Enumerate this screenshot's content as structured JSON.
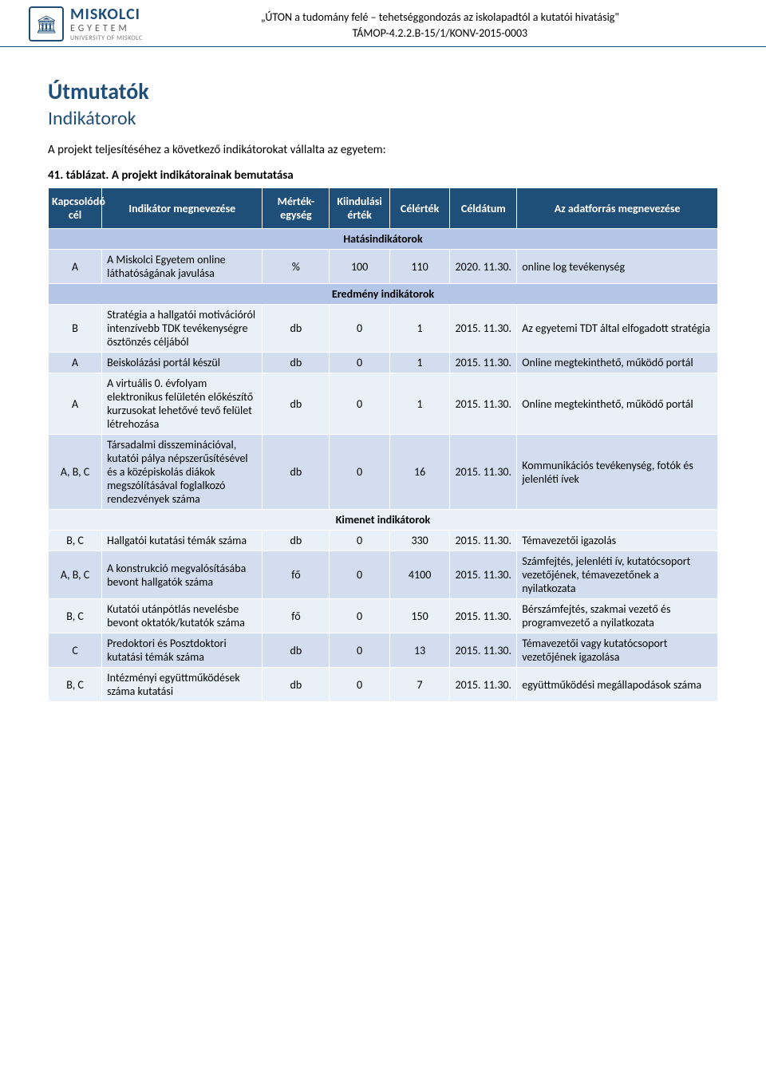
{
  "header": {
    "logo_big": "MISKOLCI",
    "logo_mid": "EGYETEM",
    "logo_small": "UNIVERSITY OF MISKOLC",
    "title_line1": "„ÚTON a tudomány felé – tehetséggondozás az iskolapadtól a kutatói hivatásig\"",
    "title_line2": "TÁMOP-4.2.2.B-15/1/KONV-2015-0003"
  },
  "headings": {
    "h1": "Útmutatók",
    "h2": "Indikátorok"
  },
  "intro": "A projekt teljesítéséhez a következő indikátorokat vállalta az egyetem:",
  "caption": "41. táblázat. A projekt indikátorainak bemutatása",
  "table": {
    "columns": [
      "Kapcsolódó cél",
      "Indikátor megnevezése",
      "Mérték-egység",
      "Kiindulási érték",
      "Célérték",
      "Céldátum",
      "Az adatforrás megnevezése"
    ],
    "sections": [
      {
        "title": "Hatásindikátorok",
        "rows": [
          {
            "c": [
              "A",
              "A Miskolci Egyetem online láthatóságának javulása",
              "%",
              "100",
              "110",
              "2020. 11.30.",
              "online log tevékenység"
            ]
          }
        ]
      },
      {
        "title": "Eredmény indikátorok",
        "rows": [
          {
            "c": [
              "B",
              "Stratégia a hallgatói motivációról intenzívebb TDK tevékenységre ösztönzés céljából",
              "db",
              "0",
              "1",
              "2015. 11.30.",
              "Az egyetemi TDT által elfogadott stratégia"
            ]
          },
          {
            "c": [
              "A",
              "Beiskolázási portál készül",
              "db",
              "0",
              "1",
              "2015. 11.30.",
              "Online megtekinthető, működő portál"
            ]
          },
          {
            "c": [
              "A",
              "A virtuális 0. évfolyam elektronikus felületén előkészítő kurzusokat lehetővé tevő felület létrehozása",
              "db",
              "0",
              "1",
              "2015. 11.30.",
              "Online megtekinthető, működő portál"
            ]
          },
          {
            "c": [
              "A, B, C",
              "Társadalmi disszeminációval, kutatói pálya népszerűsítésével és a középiskolás diákok megszólításával foglalkozó rendezvények száma",
              "db",
              "0",
              "16",
              "2015. 11.30.",
              "Kommunikációs tevékenység, fotók és jelenléti ívek"
            ]
          }
        ]
      },
      {
        "title": "Kimenet indikátorok",
        "rows": [
          {
            "c": [
              "B, C",
              "Hallgatói kutatási témák száma",
              "db",
              "0",
              "330",
              "2015. 11.30.",
              "Témavezetői igazolás"
            ]
          },
          {
            "c": [
              "A, B, C",
              "A konstrukció megvalósításába bevont hallgatók száma",
              "fő",
              "0",
              "4100",
              "2015. 11.30.",
              "Számfejtés, jelenléti ív, kutatócsoport vezetőjének, témavezetőnek a nyilatkozata"
            ]
          },
          {
            "c": [
              "B, C",
              "Kutatói utánpótlás nevelésbe bevont oktatók/kutatók száma",
              "fő",
              "0",
              "150",
              "2015. 11.30.",
              "Bérszámfejtés, szakmai vezető és programvezető a nyilatkozata"
            ]
          },
          {
            "c": [
              "C",
              "Predoktori és Posztdoktori kutatási témák száma",
              "db",
              "0",
              "13",
              "2015. 11.30.",
              "Témavezetői vagy kutatócsoport vezetőjének igazolása"
            ]
          },
          {
            "c": [
              "B, C",
              "Intézményi együttműködések száma kutatási",
              "db",
              "0",
              "7",
              "2015. 11.30.",
              "együttműködési megállapodások száma"
            ]
          }
        ]
      }
    ]
  },
  "style": {
    "colors": {
      "accent": "#1f4e79",
      "header_bg": "#1f4e79",
      "header_fg": "#ffffff",
      "row_bg_a": "#d2deef",
      "row_bg_b": "#eaf0f7",
      "section_bg": "#b3c6e7",
      "page_bg": "#ffffff",
      "text": "#000000"
    },
    "fonts": {
      "family": "Calibri",
      "h1_size_pt": 20,
      "h2_size_pt": 17,
      "body_size_pt": 11,
      "table_size_pt": 10
    },
    "column_widths_pct": [
      8,
      24,
      10,
      9,
      9,
      10,
      30
    ]
  }
}
